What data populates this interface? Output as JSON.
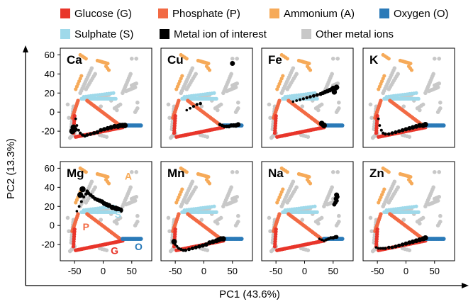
{
  "legend": [
    {
      "label": "Glucose (G)",
      "color": "#e8352a"
    },
    {
      "label": "Phosphate (P)",
      "color": "#f26a44"
    },
    {
      "label": "Ammonium (A)",
      "color": "#f6aa59"
    },
    {
      "label": "Oxygen (O)",
      "color": "#2a7ab8"
    },
    {
      "label": "Sulphate (S)",
      "color": "#9fd9ea"
    },
    {
      "label": "Metal ion of interest",
      "color": "#000000"
    },
    {
      "label": "Other metal ions",
      "color": "#c8c8c8"
    }
  ],
  "axes": {
    "x_title": "PC1 (43.6%)",
    "y_title": "PC2 (13.3%)",
    "x_ticks": [
      "-50",
      "0",
      "50"
    ],
    "x_tick_values": [
      -50,
      0,
      50
    ],
    "y_ticks": [
      "60",
      "40",
      "20",
      "0",
      "-20"
    ],
    "y_tick_values": [
      60,
      40,
      20,
      0,
      -20
    ]
  },
  "annotations": [
    {
      "text": "A",
      "x": 44,
      "y": 48,
      "color": "#f6aa59"
    },
    {
      "text": "S",
      "x": 26,
      "y": 8,
      "color": "#9fd9ea"
    },
    {
      "text": "P",
      "x": -30,
      "y": -5,
      "color": "#f26a44"
    },
    {
      "text": "G",
      "x": 20,
      "y": -30,
      "color": "#e8352a"
    },
    {
      "text": "O",
      "x": 62,
      "y": -26,
      "color": "#2a7ab8"
    }
  ],
  "chart_data": {
    "type": "scatter",
    "xlabel": "PC1 (43.6%)",
    "ylabel": "PC2 (13.3%)",
    "xlim": [
      -75,
      85
    ],
    "ylim": [
      -37,
      67
    ],
    "grid": false,
    "legend_placement": "top",
    "panels": [
      {
        "label": "Ca",
        "metal_points": [
          [
            -48,
            -7
          ],
          [
            -46,
            -14
          ],
          [
            -43,
            -19
          ],
          [
            -40,
            -22
          ],
          [
            -36,
            -24
          ],
          [
            -32,
            -25
          ],
          [
            -28,
            -24
          ],
          [
            -22,
            -23
          ],
          [
            -16,
            -22
          ],
          [
            -10,
            -21
          ],
          [
            -4,
            -19
          ],
          [
            2,
            -18
          ],
          [
            8,
            -17
          ],
          [
            14,
            -16
          ],
          [
            20,
            -15
          ],
          [
            26,
            -15
          ],
          [
            30,
            -14
          ],
          [
            34,
            -14
          ],
          [
            38,
            -14
          ],
          [
            -52,
            -16
          ],
          [
            -50,
            -18
          ],
          [
            -54,
            -20
          ]
        ]
      },
      {
        "label": "Cu",
        "metal_points": [
          [
            -30,
            2
          ],
          [
            -24,
            4
          ],
          [
            -18,
            6
          ],
          [
            -12,
            8
          ],
          [
            -6,
            9
          ],
          [
            28,
            -13
          ],
          [
            32,
            -14
          ],
          [
            36,
            -15
          ],
          [
            40,
            -15
          ],
          [
            44,
            -15
          ],
          [
            48,
            -14
          ],
          [
            52,
            -14
          ],
          [
            56,
            -14
          ],
          [
            60,
            -13
          ],
          [
            50,
            51
          ]
        ]
      },
      {
        "label": "Fe",
        "metal_points": [
          [
            -20,
            11
          ],
          [
            -14,
            12
          ],
          [
            -8,
            13
          ],
          [
            -2,
            14
          ],
          [
            4,
            15
          ],
          [
            10,
            16
          ],
          [
            16,
            17
          ],
          [
            22,
            18
          ],
          [
            28,
            19
          ],
          [
            32,
            20
          ],
          [
            36,
            21
          ],
          [
            40,
            22
          ],
          [
            44,
            23
          ],
          [
            48,
            24
          ],
          [
            50,
            25
          ],
          [
            54,
            25
          ],
          [
            52,
            21
          ],
          [
            56,
            26
          ],
          [
            30,
            -12
          ],
          [
            34,
            -14
          ]
        ]
      },
      {
        "label": "K",
        "metal_points": [
          [
            -48,
            -7
          ],
          [
            -46,
            -14
          ],
          [
            -43,
            -19
          ],
          [
            -40,
            -22
          ],
          [
            -36,
            -23
          ],
          [
            -30,
            -23
          ],
          [
            -24,
            -22
          ],
          [
            -18,
            -21
          ],
          [
            -12,
            -20
          ],
          [
            -6,
            -19
          ],
          [
            0,
            -18
          ],
          [
            6,
            -17
          ],
          [
            12,
            -16
          ],
          [
            18,
            -15
          ],
          [
            24,
            -14
          ],
          [
            30,
            -14
          ],
          [
            34,
            -13
          ]
        ]
      },
      {
        "label": "Mg",
        "metal_points": [
          [
            -46,
            15
          ],
          [
            -42,
            20
          ],
          [
            -38,
            25
          ],
          [
            -34,
            30
          ],
          [
            -30,
            33
          ],
          [
            -28,
            36
          ],
          [
            -26,
            34
          ],
          [
            -22,
            32
          ],
          [
            -18,
            30
          ],
          [
            -14,
            28
          ],
          [
            -10,
            27
          ],
          [
            -6,
            26
          ],
          [
            -2,
            25
          ],
          [
            2,
            23
          ],
          [
            6,
            22
          ],
          [
            10,
            21
          ],
          [
            16,
            19
          ],
          [
            22,
            18
          ],
          [
            26,
            17
          ],
          [
            30,
            16
          ],
          [
            -40,
            32
          ],
          [
            -36,
            38
          ]
        ]
      },
      {
        "label": "Mn",
        "metal_points": [
          [
            -50,
            -20
          ],
          [
            -47,
            -22
          ],
          [
            -44,
            -24
          ],
          [
            -40,
            -25
          ],
          [
            -36,
            -26
          ],
          [
            -32,
            -26
          ],
          [
            -26,
            -25
          ],
          [
            -20,
            -24
          ],
          [
            -14,
            -23
          ],
          [
            -8,
            -22
          ],
          [
            -2,
            -21
          ],
          [
            4,
            -20
          ],
          [
            10,
            -18
          ],
          [
            16,
            -17
          ],
          [
            22,
            -16
          ],
          [
            26,
            -15
          ],
          [
            30,
            -14
          ],
          [
            34,
            -14
          ],
          [
            -52,
            -17
          ]
        ]
      },
      {
        "label": "Na",
        "metal_points": [
          [
            26,
            -14
          ],
          [
            30,
            -15
          ],
          [
            34,
            -16
          ],
          [
            38,
            -15
          ],
          [
            42,
            -14
          ],
          [
            46,
            -13
          ],
          [
            50,
            -13
          ],
          [
            54,
            -12
          ],
          [
            56,
            -12
          ],
          [
            52,
            22
          ],
          [
            54,
            24
          ],
          [
            56,
            26
          ],
          [
            55,
            28
          ],
          [
            57,
            30
          ],
          [
            56,
            32
          ]
        ]
      },
      {
        "label": "Zn",
        "metal_points": [
          [
            -52,
            -23
          ],
          [
            -48,
            -24
          ],
          [
            -44,
            -24
          ],
          [
            -40,
            -24
          ],
          [
            -36,
            -24
          ],
          [
            -30,
            -23
          ],
          [
            -24,
            -23
          ],
          [
            -18,
            -22
          ],
          [
            -12,
            -21
          ],
          [
            -6,
            -20
          ],
          [
            0,
            -19
          ],
          [
            6,
            -18
          ],
          [
            12,
            -17
          ],
          [
            18,
            -16
          ],
          [
            24,
            -15
          ],
          [
            30,
            -14
          ],
          [
            34,
            -13
          ]
        ]
      }
    ]
  }
}
